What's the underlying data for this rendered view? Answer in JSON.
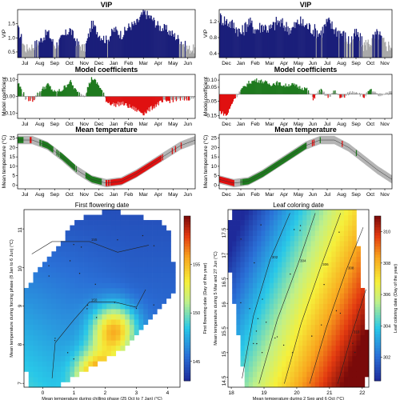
{
  "chart_data": [
    {
      "type": "area",
      "title": "VIP",
      "ylabel": "VIP",
      "yticks": [
        "0.5",
        "1.0",
        "1.5"
      ],
      "ylim": [
        0.3,
        2.0
      ],
      "xticks": [
        "Jul",
        "Aug",
        "Sep",
        "Oct",
        "Nov",
        "Dec",
        "Jan",
        "Feb",
        "Mar",
        "Apr",
        "May",
        "Jun"
      ],
      "threshold": 0.8,
      "colors": {
        "important": "#1b1f7a",
        "unimportant": "#a8a8a8"
      },
      "series": [
        {
          "x": [
            0,
            0.5,
            1,
            1.5,
            2,
            2.5,
            3,
            3.5,
            4,
            4.5,
            5,
            5.5,
            6,
            6.5,
            7,
            7.5,
            8,
            8.5,
            9,
            9.5,
            10,
            10.5,
            11,
            11.5
          ],
          "values": [
            1.3,
            0.6,
            0.7,
            0.9,
            1.2,
            0.7,
            1.0,
            1.3,
            0.8,
            0.6,
            1.5,
            1.1,
            0.9,
            1.3,
            1.1,
            1.4,
            1.5,
            1.9,
            1.7,
            1.4,
            1.3,
            1.1,
            0.9,
            0.6
          ]
        }
      ]
    },
    {
      "type": "area",
      "title": "VIP",
      "ylabel": "VIP",
      "yticks": [
        "0.4",
        "0.8",
        "1.2"
      ],
      "ylim": [
        0.3,
        1.5
      ],
      "xticks": [
        "Dec",
        "Jan",
        "Feb",
        "Mar",
        "Apr",
        "May",
        "Jun",
        "Jul",
        "Aug",
        "Sep",
        "Oct",
        "Nov"
      ],
      "threshold": 0.8,
      "colors": {
        "important": "#1b1f7a",
        "unimportant": "#a8a8a8"
      },
      "series": [
        {
          "x": [
            0,
            0.5,
            1,
            1.5,
            2,
            2.5,
            3,
            3.5,
            4,
            4.5,
            5,
            5.5,
            6,
            6.5,
            7,
            7.5,
            8,
            8.5,
            9,
            9.5,
            10,
            10.5,
            11,
            11.5
          ],
          "values": [
            1.3,
            1.2,
            1.1,
            0.9,
            1.2,
            1.0,
            1.1,
            1.0,
            1.2,
            1.1,
            1.0,
            1.2,
            1.1,
            1.0,
            0.9,
            1.2,
            1.0,
            0.9,
            0.7,
            0.9,
            0.6,
            0.7,
            0.9,
            0.6
          ]
        }
      ]
    },
    {
      "type": "bar",
      "title": "Model coefficients",
      "ylabel": "Model coefficient",
      "yticks": [
        "-0.10",
        "0.00",
        "0.10"
      ],
      "ylim": [
        -0.13,
        0.13
      ],
      "xticks": [
        "Jul",
        "Aug",
        "Sep",
        "Oct",
        "Nov",
        "Dec",
        "Jan",
        "Feb",
        "Mar",
        "Apr",
        "May",
        "Jun"
      ],
      "colors": {
        "positive": "#1e7a1e",
        "negative": "#e01010",
        "unimportant": "#a8a8a8"
      },
      "series": [
        {
          "x": [
            0,
            0.5,
            1,
            1.5,
            2,
            2.5,
            3,
            3.5,
            4,
            4.5,
            5,
            5.5,
            6,
            6.5,
            7,
            7.5,
            8,
            8.5,
            9,
            9.5,
            10,
            10.5,
            11,
            11.5
          ],
          "values": [
            0.08,
            -0.01,
            -0.02,
            0.03,
            0.07,
            0.02,
            0.04,
            0.09,
            0.02,
            0.01,
            0.11,
            0.06,
            -0.03,
            -0.05,
            -0.04,
            -0.06,
            -0.08,
            -0.1,
            -0.07,
            -0.04,
            -0.03,
            -0.02,
            -0.02,
            -0.01
          ]
        }
      ]
    },
    {
      "type": "bar",
      "title": "Model coefficients",
      "ylabel": "Model coefficient",
      "yticks": [
        "-0.15",
        "-0.05",
        "0.05",
        "0.10"
      ],
      "ylim": [
        -0.17,
        0.14
      ],
      "xticks": [
        "Dec",
        "Jan",
        "Feb",
        "Mar",
        "Apr",
        "May",
        "Jun",
        "Jul",
        "Aug",
        "Sep",
        "Oct",
        "Nov"
      ],
      "colors": {
        "positive": "#1e7a1e",
        "negative": "#e01010",
        "unimportant": "#a8a8a8"
      },
      "series": [
        {
          "x": [
            0,
            0.5,
            1,
            1.5,
            2,
            2.5,
            3,
            3.5,
            4,
            4.5,
            5,
            5.5,
            6,
            6.5,
            7,
            7.5,
            8,
            8.5,
            9,
            9.5,
            10,
            10.5,
            11,
            11.5
          ],
          "values": [
            -0.12,
            -0.15,
            -0.03,
            0.03,
            0.08,
            0.1,
            0.09,
            0.07,
            0.08,
            0.06,
            0.07,
            0.05,
            0.04,
            -0.03,
            0.03,
            -0.02,
            0.02,
            -0.03,
            0.01,
            0.02,
            -0.02,
            0.03,
            -0.01,
            0.01
          ]
        }
      ]
    },
    {
      "type": "line",
      "title": "Mean temperature",
      "ylabel": "Mean temperature (°C)",
      "yticks": [
        "0",
        "5",
        "10",
        "15",
        "20",
        "25"
      ],
      "ylim": [
        -2,
        27
      ],
      "xticks": [
        "Jul",
        "Aug",
        "Sep",
        "Oct",
        "Nov",
        "Dec",
        "Jan",
        "Feb",
        "Mar",
        "Apr",
        "May",
        "Jun"
      ],
      "colors": {
        "band": "#b5b5b5",
        "positive": "#1e7a1e",
        "negative": "#e01010"
      },
      "series": [
        {
          "x": [
            0,
            1,
            2,
            3,
            4,
            5,
            6,
            7,
            8,
            9,
            10,
            11,
            12
          ],
          "values": [
            24,
            24,
            21,
            15,
            8,
            3,
            1,
            2,
            6,
            11,
            16,
            21,
            24
          ]
        }
      ]
    },
    {
      "type": "line",
      "title": "Mean temperature",
      "ylabel": "Mean temperature (°C)",
      "yticks": [
        "0",
        "5",
        "10",
        "15",
        "20",
        "25"
      ],
      "ylim": [
        -2,
        27
      ],
      "xticks": [
        "Dec",
        "Jan",
        "Feb",
        "Mar",
        "Apr",
        "May",
        "Jun",
        "Jul",
        "Aug",
        "Sep",
        "Oct",
        "Nov"
      ],
      "colors": {
        "band": "#b5b5b5",
        "positive": "#1e7a1e",
        "negative": "#e01010"
      },
      "series": [
        {
          "x": [
            0,
            1,
            2,
            3,
            4,
            5,
            6,
            7,
            8,
            9,
            10,
            11,
            12
          ],
          "values": [
            3,
            1,
            2,
            6,
            11,
            16,
            21,
            24,
            24,
            20,
            14,
            8,
            3
          ]
        }
      ]
    },
    {
      "type": "heatmap",
      "title": "First flowering date",
      "xlabel": "Mean temperature during chilling phase (25 Oct to 7 Jan) (°C)",
      "ylabel": "Mean temperature during forcing phase (8 Jan to 6 Jun) (°C)",
      "xticks": [
        "0",
        "1",
        "2",
        "3",
        "4"
      ],
      "yticks": [
        "7",
        "8",
        "9",
        "10",
        "11"
      ],
      "xlim": [
        -0.6,
        4.4
      ],
      "ylim": [
        6.9,
        11.5
      ],
      "colorbar_label": "First flowering date (Day of the year)",
      "colorbar_ticks": [
        "145",
        "150",
        "155"
      ],
      "colorbar_range": [
        143,
        160
      ],
      "contour_labels": [
        "150",
        "155"
      ]
    },
    {
      "type": "heatmap",
      "title": "Leaf coloring date",
      "xlabel": "Mean temperature during 2 Sep and 6 Oct (°C)",
      "ylabel": "Mean temperature during 5 Mar and 27 Jun (°C)",
      "xticks": [
        "18",
        "19",
        "20",
        "21",
        "22"
      ],
      "yticks": [
        "14.5",
        "15",
        "15.5",
        "16",
        "16.5",
        "17",
        "17.5"
      ],
      "xlim": [
        17.9,
        22.2
      ],
      "ylim": [
        14.3,
        17.9
      ],
      "colorbar_label": "Leaf coloring date (Day of the year)",
      "colorbar_ticks": [
        "302",
        "304",
        "306",
        "308",
        "310"
      ],
      "colorbar_range": [
        300.5,
        311
      ],
      "contour_labels": [
        "302",
        "304",
        "306",
        "308",
        "310"
      ]
    }
  ]
}
